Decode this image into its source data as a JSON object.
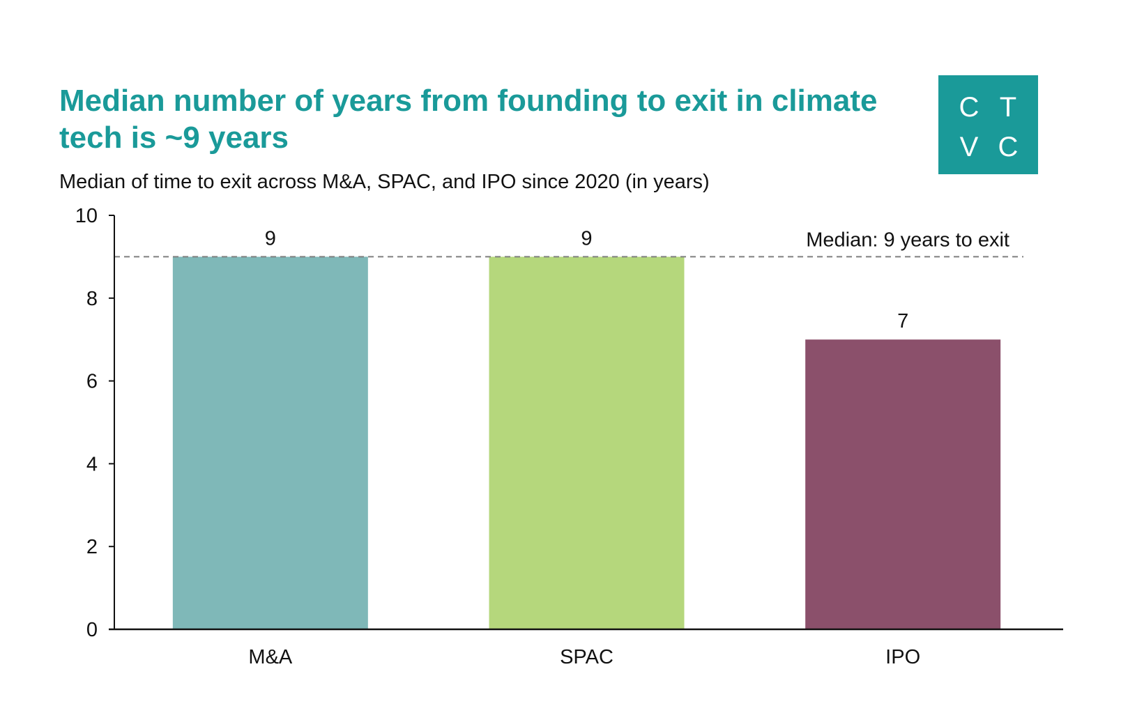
{
  "header": {
    "title": "Median number of years from founding to exit in climate tech is ~9 years",
    "subtitle": "Median of time to exit across M&A, SPAC, and IPO since 2020 (in years)"
  },
  "logo": {
    "letters": [
      "C",
      "T",
      "V",
      "C"
    ],
    "color": "#1a9a99"
  },
  "chart_data": {
    "type": "bar",
    "categories": [
      "M&A",
      "SPAC",
      "IPO"
    ],
    "values": [
      9,
      9,
      7
    ],
    "data_labels": [
      "9",
      "9",
      "7"
    ],
    "colors": [
      "#7fb8b8",
      "#b5d77c",
      "#8b506b"
    ],
    "ylim": [
      0,
      10
    ],
    "yticks": [
      0,
      2,
      4,
      6,
      8,
      10
    ],
    "grid": false,
    "reference_line": {
      "value": 9,
      "label": "Median: 9 years to exit",
      "style": "dashed"
    }
  }
}
